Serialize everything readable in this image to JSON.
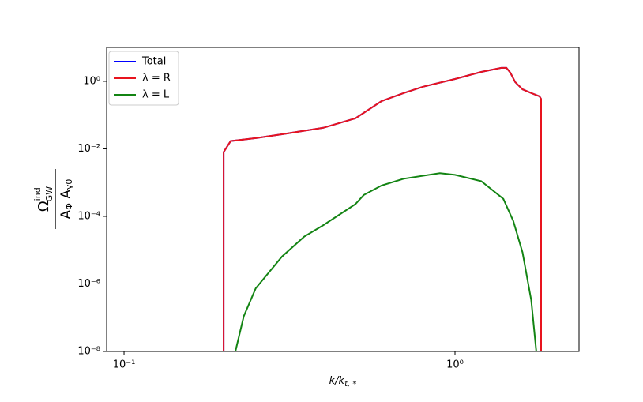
{
  "chart_data": {
    "type": "line",
    "xlabel": [
      "k/k",
      "t, *"
    ],
    "ylabel": {
      "numerator": [
        "Ω",
        "ind",
        "GW"
      ],
      "denominator": [
        "A",
        "Φ",
        " A",
        "γ0"
      ]
    },
    "xscale": "log",
    "yscale": "log",
    "xlim": [
      0.0886,
      2.37
    ],
    "ylim": [
      1e-08,
      10.1
    ],
    "xticks": [
      {
        "value": 0.1,
        "label": "10⁻¹"
      },
      {
        "value": 1,
        "label": "10⁰"
      }
    ],
    "yticks": [
      {
        "value": 1e-08,
        "label": "10⁻⁸"
      },
      {
        "value": 1e-06,
        "label": "10⁻⁶"
      },
      {
        "value": 0.0001,
        "label": "10⁻⁴"
      },
      {
        "value": 0.01,
        "label": "10⁻²"
      },
      {
        "value": 1,
        "label": "10⁰"
      }
    ],
    "legend": "upper left",
    "series": [
      {
        "name": "Total",
        "color": "#0000ff",
        "x": [
          0.2,
          0.2,
          0.21,
          0.25,
          0.3,
          0.4,
          0.5,
          0.53,
          0.6,
          0.7,
          0.8,
          1.0,
          1.2,
          1.38,
          1.43,
          1.47,
          1.52,
          1.6,
          1.7,
          1.8,
          1.82,
          1.82
        ],
        "values": [
          1e-08,
          0.008,
          0.017,
          0.0207,
          0.027,
          0.042,
          0.08,
          0.116,
          0.26,
          0.45,
          0.69,
          1.17,
          1.9,
          2.5,
          2.5,
          1.8,
          0.95,
          0.58,
          0.45,
          0.36,
          0.3,
          1e-08
        ]
      },
      {
        "name": "λ = R",
        "color": "#e8141e",
        "x": [
          0.2,
          0.2,
          0.21,
          0.25,
          0.3,
          0.4,
          0.5,
          0.53,
          0.6,
          0.7,
          0.8,
          1.0,
          1.2,
          1.38,
          1.43,
          1.47,
          1.52,
          1.6,
          1.7,
          1.8,
          1.82,
          1.82
        ],
        "values": [
          1e-08,
          0.008,
          0.017,
          0.0207,
          0.027,
          0.042,
          0.08,
          0.116,
          0.26,
          0.45,
          0.69,
          1.17,
          1.9,
          2.5,
          2.5,
          1.8,
          0.95,
          0.58,
          0.45,
          0.36,
          0.3,
          1e-08
        ]
      },
      {
        "name": "λ = L",
        "color": "#138413",
        "x": [
          0.217,
          0.23,
          0.25,
          0.3,
          0.35,
          0.4,
          0.5,
          0.53,
          0.6,
          0.7,
          0.9,
          1.0,
          1.2,
          1.4,
          1.5,
          1.6,
          1.7,
          1.76
        ],
        "values": [
          1e-08,
          1.1e-07,
          7.4e-07,
          6.4e-06,
          2.5e-05,
          5.5e-05,
          0.00023,
          0.00043,
          0.00082,
          0.0013,
          0.0019,
          0.0017,
          0.0011,
          0.00033,
          7.3e-05,
          8.5e-06,
          3.3e-07,
          1e-08
        ]
      }
    ]
  }
}
